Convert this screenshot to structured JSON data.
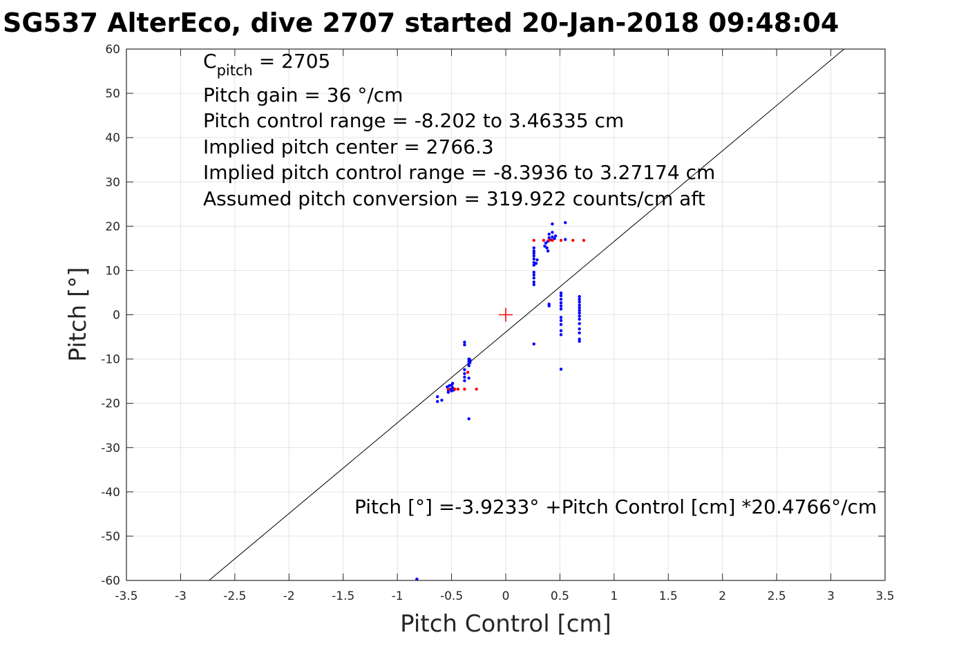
{
  "chart_data": {
    "type": "scatter",
    "title": "SG537 AlterEco, dive 2707 started 20-Jan-2018 09:48:04",
    "xlabel": "Pitch Control [cm]",
    "ylabel": "Pitch [°]",
    "xlim": [
      -3.5,
      3.5
    ],
    "ylim": [
      -60,
      60
    ],
    "xticks": [
      -3.5,
      -3,
      -2.5,
      -2,
      -1.5,
      -1,
      -0.5,
      0,
      0.5,
      1,
      1.5,
      2,
      2.5,
      3,
      3.5
    ],
    "yticks": [
      -60,
      -50,
      -40,
      -30,
      -20,
      -10,
      0,
      10,
      20,
      30,
      40,
      50,
      60
    ],
    "xtick_labels": [
      "-3.5",
      "-3",
      "-2.5",
      "-2",
      "-1.5",
      "-1",
      "-0.5",
      "0",
      "0.5",
      "1",
      "1.5",
      "2",
      "2.5",
      "3",
      "3.5"
    ],
    "ytick_labels": [
      "-60",
      "-50",
      "-40",
      "-30",
      "-20",
      "-10",
      "0",
      "10",
      "20",
      "30",
      "40",
      "50",
      "60"
    ],
    "grid": true,
    "fit_line": {
      "intercept": -3.9233,
      "slope": 20.4766,
      "color": "#000000"
    },
    "center_marker": {
      "x": 0,
      "y": 0,
      "color": "#ff0000"
    },
    "series": [
      {
        "color": "#0000ff",
        "points": [
          [
            -0.63,
            -18.5
          ],
          [
            -0.63,
            -19.6
          ],
          [
            -0.59,
            -19.3
          ],
          [
            -0.54,
            -16.3
          ],
          [
            -0.53,
            -17.0
          ],
          [
            -0.53,
            -17.5
          ],
          [
            -0.52,
            -16.0
          ],
          [
            -0.51,
            -16.8
          ],
          [
            -0.5,
            -15.9
          ],
          [
            -0.5,
            -17.2
          ],
          [
            -0.49,
            -15.5
          ],
          [
            -0.49,
            -16.5
          ],
          [
            -0.48,
            -17.0
          ],
          [
            -0.38,
            -6.2
          ],
          [
            -0.38,
            -6.8
          ],
          [
            -0.38,
            -12.4
          ],
          [
            -0.38,
            -13.3
          ],
          [
            -0.38,
            -14.1
          ],
          [
            -0.38,
            -14.9
          ],
          [
            -0.34,
            -10.0
          ],
          [
            -0.34,
            -10.5
          ],
          [
            -0.34,
            -11.0
          ],
          [
            -0.34,
            -11.5
          ],
          [
            -0.34,
            -14.3
          ],
          [
            -0.34,
            -23.5
          ],
          [
            -0.33,
            -10.2
          ],
          [
            -0.33,
            -10.8
          ],
          [
            0.26,
            6.8
          ],
          [
            0.26,
            7.4
          ],
          [
            0.26,
            8.3
          ],
          [
            0.26,
            9.0
          ],
          [
            0.26,
            9.6
          ],
          [
            0.26,
            11.2
          ],
          [
            0.26,
            11.8
          ],
          [
            0.26,
            12.6
          ],
          [
            0.26,
            13.3
          ],
          [
            0.26,
            13.9
          ],
          [
            0.26,
            14.4
          ],
          [
            0.26,
            15.1
          ],
          [
            0.26,
            -6.6
          ],
          [
            0.28,
            11.6
          ],
          [
            0.29,
            12.4
          ],
          [
            0.36,
            15.5
          ],
          [
            0.37,
            16.2
          ],
          [
            0.38,
            15.1
          ],
          [
            0.39,
            14.4
          ],
          [
            0.39,
            16.6
          ],
          [
            0.4,
            17.4
          ],
          [
            0.4,
            18.2
          ],
          [
            0.4,
            2.0
          ],
          [
            0.4,
            2.4
          ],
          [
            0.42,
            16.9
          ],
          [
            0.43,
            17.6
          ],
          [
            0.43,
            18.6
          ],
          [
            0.43,
            20.5
          ],
          [
            0.45,
            17.2
          ],
          [
            0.46,
            17.8
          ],
          [
            0.51,
            4.9
          ],
          [
            0.51,
            4.3
          ],
          [
            0.51,
            3.5
          ],
          [
            0.51,
            2.7
          ],
          [
            0.51,
            2.0
          ],
          [
            0.51,
            1.3
          ],
          [
            0.51,
            -0.6
          ],
          [
            0.51,
            -1.3
          ],
          [
            0.51,
            -2.2
          ],
          [
            0.51,
            -3.6
          ],
          [
            0.51,
            -4.5
          ],
          [
            0.51,
            -12.3
          ],
          [
            0.55,
            17.0
          ],
          [
            0.55,
            20.8
          ],
          [
            0.68,
            4.1
          ],
          [
            0.68,
            3.5
          ],
          [
            0.68,
            2.9
          ],
          [
            0.68,
            2.2
          ],
          [
            0.68,
            1.6
          ],
          [
            0.68,
            1.0
          ],
          [
            0.68,
            0.4
          ],
          [
            0.68,
            -0.3
          ],
          [
            0.68,
            -1.0
          ],
          [
            0.68,
            -2.0
          ],
          [
            0.68,
            -3.2
          ],
          [
            0.68,
            -4.1
          ],
          [
            0.68,
            -5.5
          ],
          [
            0.68,
            -6.0
          ],
          [
            -0.82,
            -59.7
          ]
        ]
      },
      {
        "color": "#ff0000",
        "points": [
          [
            -0.53,
            -16.8
          ],
          [
            -0.47,
            -16.8
          ],
          [
            -0.44,
            -16.8
          ],
          [
            -0.38,
            -16.8
          ],
          [
            -0.27,
            -16.8
          ],
          [
            -0.35,
            -13.0
          ],
          [
            0.26,
            16.8
          ],
          [
            0.35,
            16.8
          ],
          [
            0.4,
            16.8
          ],
          [
            0.43,
            16.8
          ],
          [
            0.51,
            16.8
          ],
          [
            0.62,
            16.8
          ],
          [
            0.72,
            16.8
          ]
        ]
      }
    ]
  },
  "annotations": {
    "c_pitch_symbol": "C",
    "c_pitch_sub": "pitch",
    "c_pitch_value": " = 2705",
    "lines": [
      "Pitch gain = 36 °/cm",
      "Pitch control range = -8.202 to 3.46335 cm",
      "Implied pitch center = 2766.3",
      "Implied pitch control range = -8.3936 to 3.27174 cm",
      "Assumed pitch conversion = 319.922 counts/cm aft"
    ],
    "fit_equation": "Pitch [°] =-3.9233° +Pitch Control [cm] *20.4766°/cm"
  }
}
